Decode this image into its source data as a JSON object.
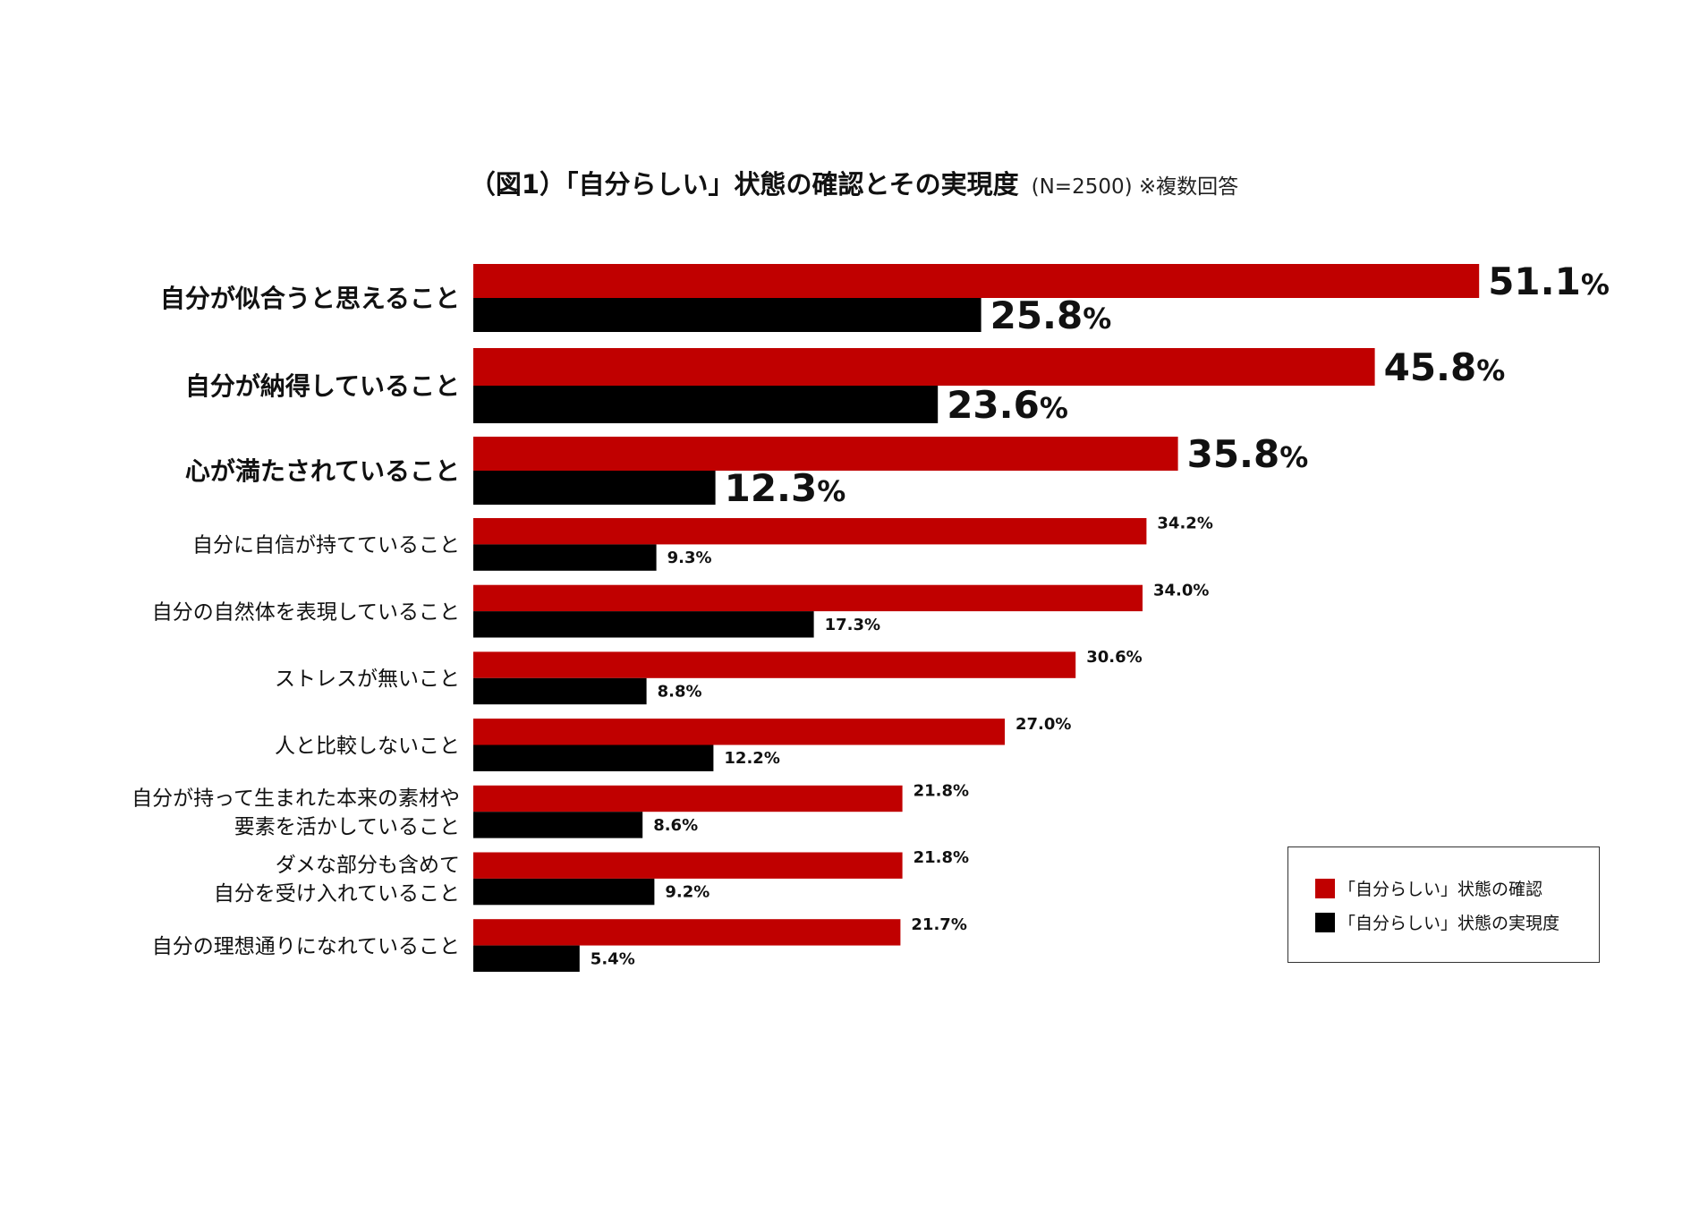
{
  "chart_data": {
    "type": "bar",
    "orientation": "horizontal",
    "title": "（図1）「自分らしい」状態の確認とその実現度",
    "subtitle": "(N=2500) ※複数回答",
    "categories": [
      [
        "自分が似合うと思えること"
      ],
      [
        "自分が納得していること"
      ],
      [
        "心が満たされていること"
      ],
      [
        "自分に自信が持てていること"
      ],
      [
        "自分の自然体を表現していること"
      ],
      [
        "ストレスが無いこと"
      ],
      [
        "人と比較しないこと"
      ],
      [
        "自分が持って生まれた本来の素材や",
        "要素を活かしていること"
      ],
      [
        "ダメな部分も含めて",
        "自分を受け入れていること"
      ],
      [
        "自分の理想通りになれていること"
      ]
    ],
    "emphasized_count": 3,
    "series": [
      {
        "name": "「自分らしい」状態の確認",
        "color": "#c00000",
        "values": [
          51.1,
          45.8,
          35.8,
          34.2,
          34.0,
          30.6,
          27.0,
          21.8,
          21.8,
          21.7
        ]
      },
      {
        "name": "「自分らしい」状態の実現度",
        "color": "#000000",
        "values": [
          25.8,
          23.6,
          12.3,
          9.3,
          17.3,
          8.8,
          12.2,
          8.6,
          9.2,
          5.4
        ]
      }
    ],
    "value_suffix": "%",
    "xlim": [
      0,
      51.1
    ],
    "grid": false,
    "axes_visible": false,
    "legend_position": "bottom-right"
  }
}
